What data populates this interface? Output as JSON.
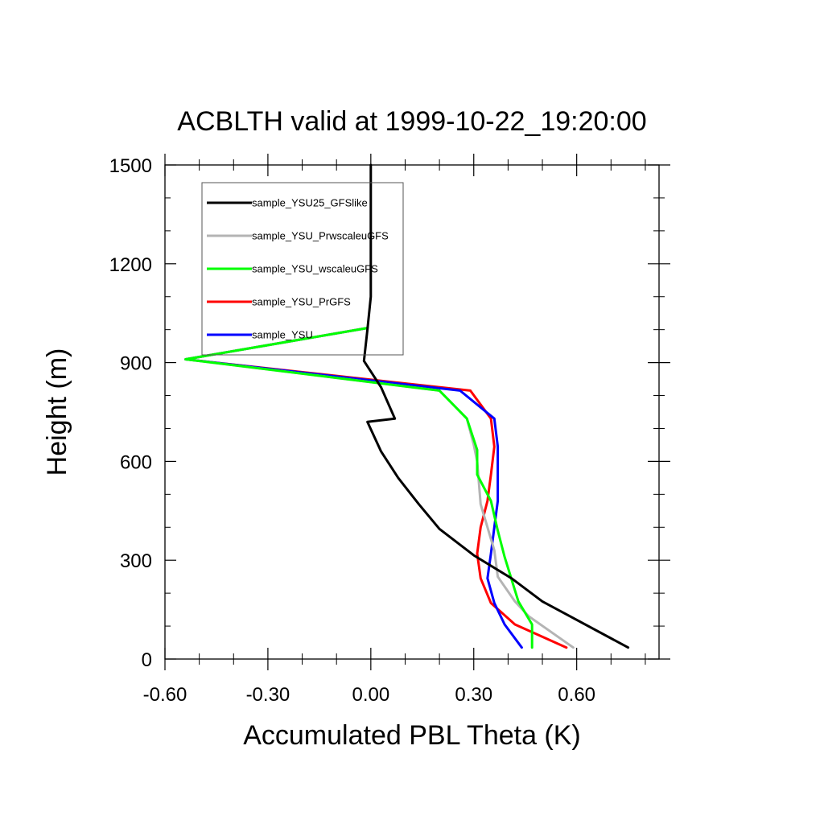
{
  "chart_data": {
    "type": "line",
    "title": "ACBLTH valid at 1999-10-22_19:20:00",
    "xlabel": "Accumulated PBL Theta (K)",
    "ylabel": "Height (m)",
    "xlim": [
      -0.6,
      0.84
    ],
    "ylim": [
      0,
      1500
    ],
    "xticks": [
      -0.6,
      -0.3,
      0.0,
      0.3,
      0.6
    ],
    "xtick_labels": [
      "-0.60",
      "-0.30",
      "0.00",
      "0.30",
      "0.60"
    ],
    "yticks": [
      0,
      300,
      600,
      900,
      1200,
      1500
    ],
    "ytick_labels": [
      "0",
      "300",
      "600",
      "900",
      "1200",
      "1500"
    ],
    "grid": false,
    "legend_position": "top-left",
    "series": [
      {
        "name": "sample_YSU25_GFSlike",
        "color": "#000000",
        "points": [
          [
            0.75,
            35
          ],
          [
            0.5,
            175
          ],
          [
            0.41,
            245
          ],
          [
            0.3,
            315
          ],
          [
            0.2,
            395
          ],
          [
            0.14,
            470
          ],
          [
            0.08,
            550
          ],
          [
            0.03,
            630
          ],
          [
            -0.01,
            720
          ],
          [
            0.07,
            730
          ],
          [
            0.03,
            825
          ],
          [
            -0.02,
            905
          ],
          [
            -0.01,
            1000
          ],
          [
            0.0,
            1100
          ],
          [
            0.0,
            1200
          ],
          [
            0.0,
            1300
          ],
          [
            0.0,
            1400
          ],
          [
            0.0,
            1500
          ]
        ]
      },
      {
        "name": "sample_YSU_PrwscaleuGFS",
        "color": "#b4b4b4",
        "points": [
          [
            0.59,
            35
          ],
          [
            0.46,
            130
          ],
          [
            0.42,
            175
          ],
          [
            0.37,
            250
          ],
          [
            0.36,
            330
          ],
          [
            0.32,
            470
          ],
          [
            0.31,
            600
          ],
          [
            0.3,
            650
          ],
          [
            0.28,
            730
          ],
          [
            0.2,
            815
          ],
          [
            -0.54,
            910
          ],
          [
            -0.01,
            1005
          ]
        ]
      },
      {
        "name": "sample_YSU_wscaleuGFS",
        "color": "#00ff00",
        "points": [
          [
            0.47,
            35
          ],
          [
            0.47,
            105
          ],
          [
            0.43,
            175
          ],
          [
            0.39,
            310
          ],
          [
            0.37,
            390
          ],
          [
            0.35,
            480
          ],
          [
            0.31,
            560
          ],
          [
            0.31,
            635
          ],
          [
            0.28,
            730
          ],
          [
            0.2,
            815
          ],
          [
            -0.54,
            910
          ],
          [
            -0.01,
            1005
          ]
        ]
      },
      {
        "name": "sample_YSU_PrGFS",
        "color": "#ff0000",
        "points": [
          [
            0.57,
            35
          ],
          [
            0.42,
            105
          ],
          [
            0.35,
            170
          ],
          [
            0.32,
            245
          ],
          [
            0.31,
            320
          ],
          [
            0.32,
            400
          ],
          [
            0.34,
            480
          ],
          [
            0.35,
            560
          ],
          [
            0.36,
            645
          ],
          [
            0.35,
            730
          ],
          [
            0.29,
            815
          ],
          [
            -0.54,
            910
          ],
          [
            -0.01,
            1005
          ]
        ]
      },
      {
        "name": "sample_YSU",
        "color": "#0000ff",
        "points": [
          [
            0.44,
            35
          ],
          [
            0.39,
            105
          ],
          [
            0.36,
            170
          ],
          [
            0.34,
            245
          ],
          [
            0.35,
            320
          ],
          [
            0.36,
            400
          ],
          [
            0.37,
            480
          ],
          [
            0.37,
            560
          ],
          [
            0.37,
            645
          ],
          [
            0.36,
            730
          ],
          [
            0.26,
            815
          ],
          [
            -0.54,
            910
          ],
          [
            -0.01,
            1005
          ]
        ]
      }
    ]
  }
}
